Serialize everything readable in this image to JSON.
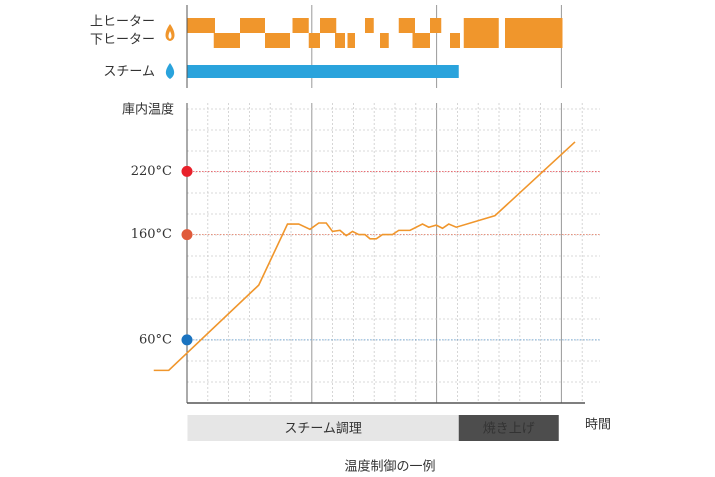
{
  "chart_data": {
    "type": "line",
    "title": "温度制御の一例",
    "y_label": "庫内温度",
    "x_label": "時間",
    "xlim": [
      -3,
      33
    ],
    "ylim": [
      0,
      285
    ],
    "yticks": [
      {
        "value": 220,
        "label": "220°C"
      },
      {
        "value": 160,
        "label": "160°C"
      },
      {
        "value": 60,
        "label": "60°C"
      }
    ],
    "tick_colors": [
      "#e8202a",
      "#e05a3a",
      "#1a73c0"
    ],
    "grid": true,
    "series": [
      {
        "name": "庫内温度",
        "color": "#f0962c",
        "x": [
          -2.7,
          -1.5,
          5.7,
          8,
          8.9,
          9.8,
          10.5,
          11.1,
          11.6,
          12.2,
          12.7,
          13.2,
          13.7,
          14.2,
          14.6,
          15.1,
          15.6,
          16.4,
          16.9,
          17.8,
          18.8,
          19.3,
          19.9,
          20.4,
          20.9,
          21.5,
          24.6,
          31.0
        ],
        "values": [
          31,
          31,
          112,
          170,
          170,
          165,
          171,
          171,
          163,
          164,
          159,
          163,
          160,
          160,
          156,
          156,
          160,
          160,
          164,
          164,
          170,
          167,
          169,
          166,
          170,
          167,
          178,
          248
        ]
      }
    ],
    "heaters": [
      {
        "name": "上ヒーター",
        "color": "#f0962c",
        "intervals": [
          [
            0,
            2.2
          ],
          [
            4.2,
            6.2
          ],
          [
            8.4,
            9.7
          ],
          [
            10.6,
            11.9
          ],
          [
            14.2,
            14.9
          ],
          [
            16.9,
            18.2
          ],
          [
            19.4,
            20.3
          ],
          [
            22.1,
            24.9
          ],
          [
            25.4,
            30.0
          ]
        ]
      },
      {
        "name": "下ヒーター",
        "color": "#f0962c",
        "intervals": [
          [
            2.1,
            4.2
          ],
          [
            6.2,
            8.2
          ],
          [
            9.7,
            10.6
          ],
          [
            11.8,
            12.6
          ],
          [
            12.8,
            13.4
          ],
          [
            15.4,
            16.1
          ],
          [
            18.0,
            19.4
          ],
          [
            21.0,
            21.8
          ],
          [
            22.1,
            24.9
          ],
          [
            25.4,
            30.0
          ]
        ]
      },
      {
        "name": "スチーム",
        "color": "#2aa3dc",
        "intervals": [
          [
            0,
            21.7
          ]
        ]
      }
    ],
    "phases": [
      {
        "name": "スチーム調理",
        "color": "#e6e6e6",
        "text_color": "#333333",
        "range": [
          0,
          21.7
        ]
      },
      {
        "name": "焼き上げ",
        "color": "#4d4d4d",
        "text_color": "#ffffff",
        "range": [
          21.7,
          29.7
        ]
      }
    ]
  }
}
